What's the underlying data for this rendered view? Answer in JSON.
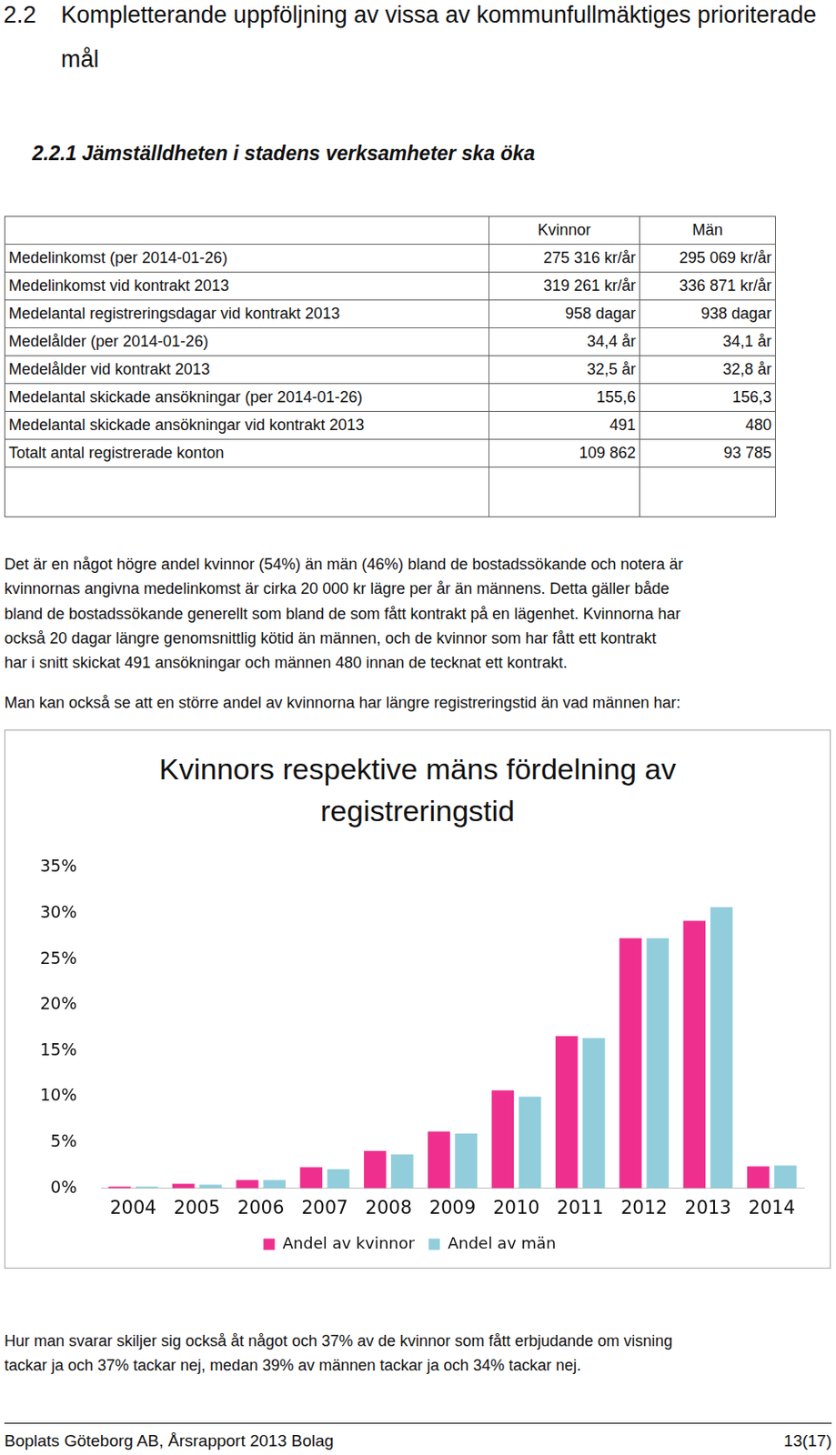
{
  "heading": {
    "number": "2.2",
    "title": "Kompletterande uppföljning av vissa av kommunfullmäktiges prioriterade mål"
  },
  "subheading": {
    "number": "2.2.1",
    "title": "Jämställdheten i stadens verksamheter ska öka"
  },
  "table": {
    "columns": [
      "Kvinnor",
      "Män"
    ],
    "rows": [
      [
        "Medelinkomst (per 2014-01-26)",
        "275 316 kr/år",
        "295 069 kr/år"
      ],
      [
        "Medelinkomst vid kontrakt 2013",
        "319 261 kr/år",
        "336 871 kr/år"
      ],
      [
        "Medelantal registreringsdagar vid kontrakt 2013",
        "958 dagar",
        "938 dagar"
      ],
      [
        "Medelålder (per 2014-01-26)",
        "34,4 år",
        "34,1 år"
      ],
      [
        "Medelålder vid kontrakt 2013",
        "32,5 år",
        "32,8 år"
      ],
      [
        "Medelantal skickade ansökningar (per 2014-01-26)",
        "155,6",
        "156,3"
      ],
      [
        "Medelantal skickade ansökningar vid kontrakt 2013",
        "491",
        "480"
      ],
      [
        "Totalt antal registrerade konton",
        "109 862",
        "93 785"
      ]
    ]
  },
  "paragraphs": [
    [
      "Det är en något högre andel kvinnor (54%) än män (46%) bland de bostadssökande och notera är",
      "kvinnornas angivna medelinkomst är cirka 20 000 kr lägre per år än männens. Detta gäller både",
      "bland de bostadssökande generellt som bland de som fått kontrakt på en lägenhet. Kvinnorna har",
      "också 20 dagar längre genomsnittlig kötid än männen, och de kvinnor som har fått ett kontrakt",
      "har i snitt skickat 491 ansökningar och männen 480 innan de tecknat ett kontrakt."
    ],
    [
      "Man kan också se att en större andel av kvinnorna har längre registreringstid än vad männen har:"
    ]
  ],
  "chart_data": {
    "type": "bar",
    "title": "Kvinnors respektive mäns fördelning av registreringstid",
    "categories": [
      "2004",
      "2005",
      "2006",
      "2007",
      "2008",
      "2009",
      "2010",
      "2011",
      "2012",
      "2013",
      "2014"
    ],
    "series": [
      {
        "name": "Andel av kvinnor",
        "color": "#ef2f8e",
        "values": [
          0.2,
          0.5,
          0.9,
          2.3,
          4.1,
          6.2,
          10.7,
          16.6,
          27.3,
          29.2,
          2.4
        ]
      },
      {
        "name": "Andel av män",
        "color": "#92cddc",
        "values": [
          0.2,
          0.4,
          0.9,
          2.1,
          3.7,
          6.0,
          10.0,
          16.4,
          27.3,
          30.7,
          2.5
        ]
      }
    ],
    "ylim": [
      0,
      35
    ],
    "yticks": [
      {
        "value": 0,
        "label": "0%"
      },
      {
        "value": 5,
        "label": "5%"
      },
      {
        "value": 10,
        "label": "10%"
      },
      {
        "value": 15,
        "label": "15%"
      },
      {
        "value": 20,
        "label": "20%"
      },
      {
        "value": 25,
        "label": "25%"
      },
      {
        "value": 30,
        "label": "30%"
      },
      {
        "value": 35,
        "label": "35%"
      }
    ],
    "grid": false,
    "legend": "bottom"
  },
  "paragraph_after": [
    "Hur man svarar skiljer sig också åt något och 37% av de kvinnor som fått erbjudande om visning",
    "tackar ja och 37% tackar nej, medan 39% av männen tackar ja och 34% tackar nej."
  ],
  "footer": {
    "left": "Boplats Göteborg AB, Årsrapport 2013 Bolag",
    "right": "13(17)"
  }
}
